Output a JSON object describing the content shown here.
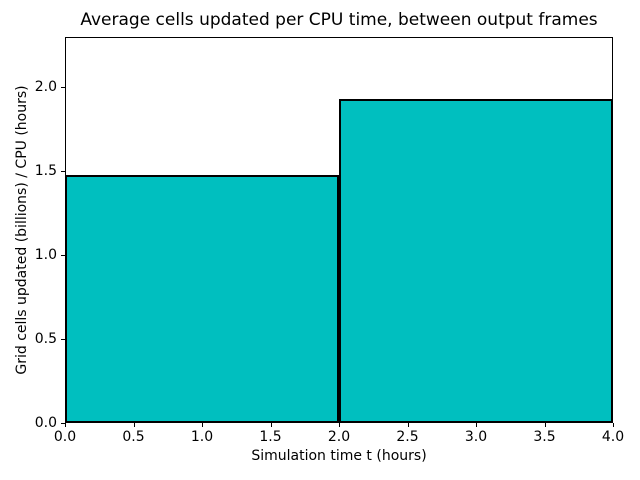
{
  "chart_data": {
    "type": "bar",
    "title": "Average cells updated per CPU time, between output frames",
    "xlabel": "Simulation time t (hours)",
    "ylabel": "Grid cells updated (billions) / CPU (hours)",
    "bars": [
      {
        "x_start": 0.0,
        "x_end": 2.0,
        "value": 1.48
      },
      {
        "x_start": 2.0,
        "x_end": 4.0,
        "value": 1.93
      }
    ],
    "xlim": [
      0.0,
      4.0
    ],
    "ylim": [
      0.0,
      2.3
    ],
    "xtick_labels": [
      "0.0",
      "0.5",
      "1.0",
      "1.5",
      "2.0",
      "2.5",
      "3.0",
      "3.5",
      "4.0"
    ],
    "ytick_labels": [
      "0.0",
      "0.5",
      "1.0",
      "1.5",
      "2.0"
    ],
    "grid": false,
    "legend_position": "none",
    "colors": {
      "fill": "#00BFBF",
      "edge": "#000000",
      "background": "#FFFFFF",
      "text": "#000000"
    }
  }
}
